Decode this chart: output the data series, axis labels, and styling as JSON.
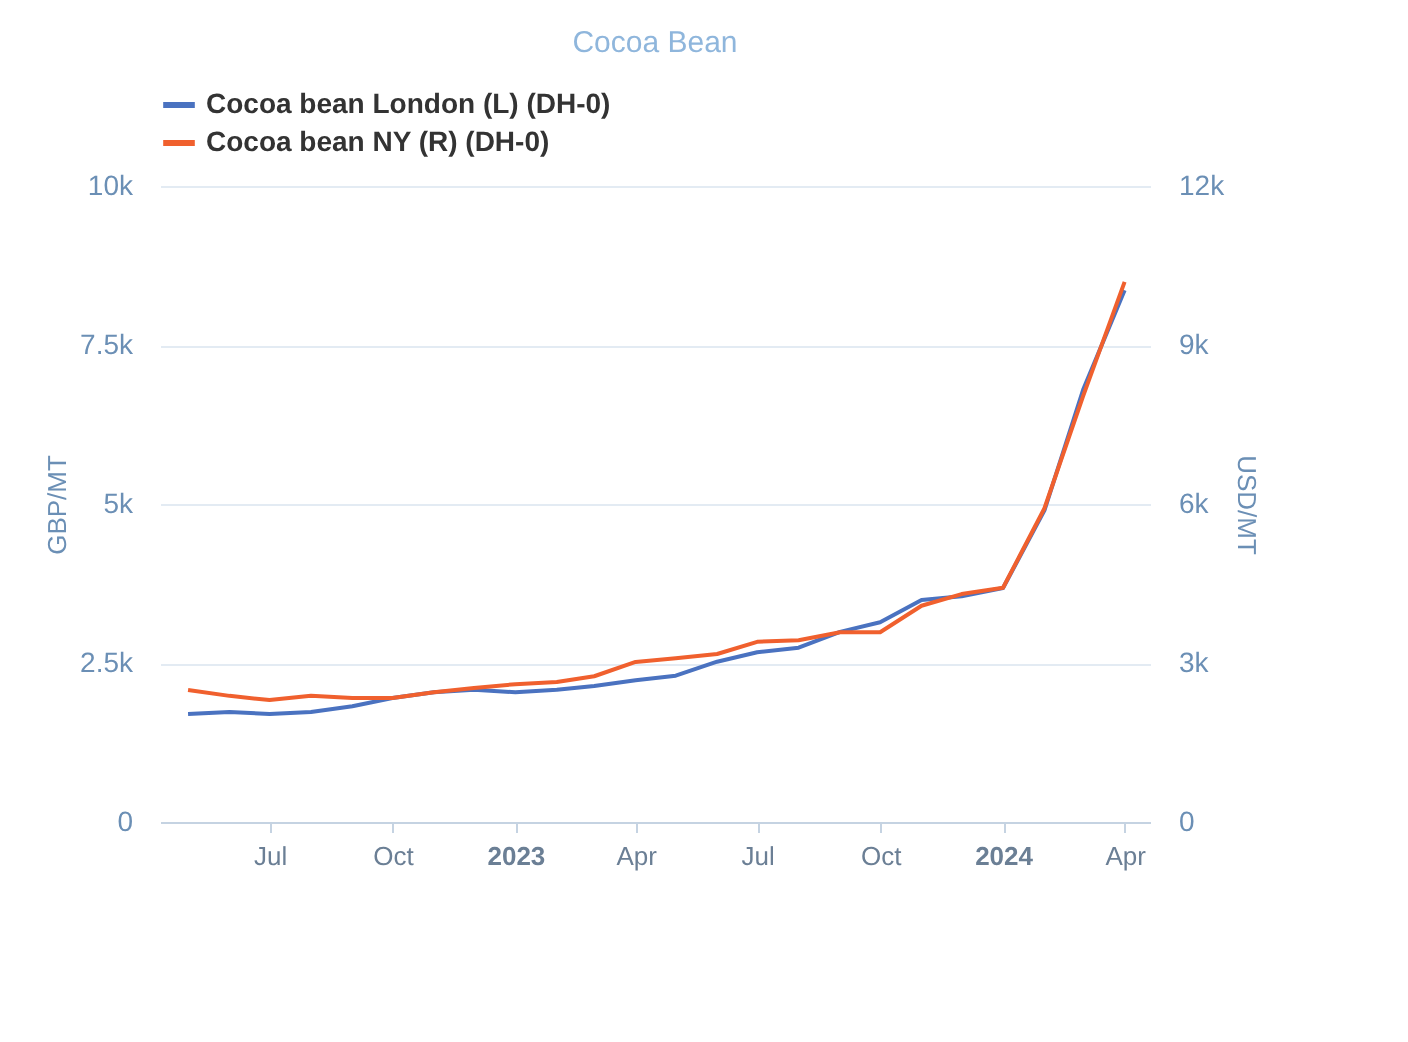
{
  "chart_data": {
    "type": "line",
    "title": "Cocoa Bean",
    "ylabel": "GBP/MT",
    "y2label": "USD/MT",
    "x": [
      "2022-05",
      "2022-06",
      "2022-07",
      "2022-08",
      "2022-09",
      "2022-10",
      "2022-11",
      "2022-12",
      "2023-01",
      "2023-02",
      "2023-03",
      "2023-04",
      "2023-05",
      "2023-06",
      "2023-07",
      "2023-08",
      "2023-09",
      "2023-10",
      "2023-11",
      "2023-12",
      "2024-01",
      "2024-02",
      "2024-03",
      "2024-04"
    ],
    "series": [
      {
        "name": "Cocoa bean London (L) (DH-0)",
        "color": "#4a72c0",
        "values": [
          1700,
          1730,
          1700,
          1730,
          1820,
          1950,
          2040,
          2080,
          2040,
          2080,
          2140,
          2230,
          2300,
          2520,
          2670,
          2740,
          2990,
          3140,
          3490,
          3550,
          3680,
          4900,
          6800,
          8360
        ]
      },
      {
        "name": "Cocoa bean NY (R) (DH-0)",
        "color": "#f0602e",
        "axis": "y2",
        "values": [
          2490,
          2380,
          2300,
          2380,
          2340,
          2340,
          2450,
          2530,
          2600,
          2640,
          2750,
          3020,
          3090,
          3170,
          3400,
          3430,
          3580,
          3580,
          4080,
          4300,
          4420,
          5920,
          8040,
          10190
        ]
      }
    ],
    "xlim": [
      "2022-04-10",
      "2024-04-20"
    ],
    "xticks": [
      {
        "value": "2022-07",
        "label": "Jul"
      },
      {
        "value": "2022-10",
        "label": "Oct"
      },
      {
        "value": "2023-01",
        "label": "2023"
      },
      {
        "value": "2023-04",
        "label": "Apr"
      },
      {
        "value": "2023-07",
        "label": "Jul"
      },
      {
        "value": "2023-10",
        "label": "Oct"
      },
      {
        "value": "2024-01",
        "label": "2024"
      },
      {
        "value": "2024-04",
        "label": "Apr"
      }
    ],
    "ylim": [
      0,
      10000
    ],
    "yticks": [
      {
        "value": 0,
        "label": "0"
      },
      {
        "value": 2500,
        "label": "2.5k"
      },
      {
        "value": 5000,
        "label": "5k"
      },
      {
        "value": 7500,
        "label": "7.5k"
      },
      {
        "value": 10000,
        "label": "10k"
      }
    ],
    "y2lim": [
      0,
      12000
    ],
    "y2ticks": [
      {
        "value": 0,
        "label": "0"
      },
      {
        "value": 3000,
        "label": "3k"
      },
      {
        "value": 6000,
        "label": "6k"
      },
      {
        "value": 9000,
        "label": "9k"
      },
      {
        "value": 12000,
        "label": "12k"
      }
    ],
    "grid": "y",
    "legend": "top left",
    "marker": "none",
    "line_style": "solid"
  }
}
